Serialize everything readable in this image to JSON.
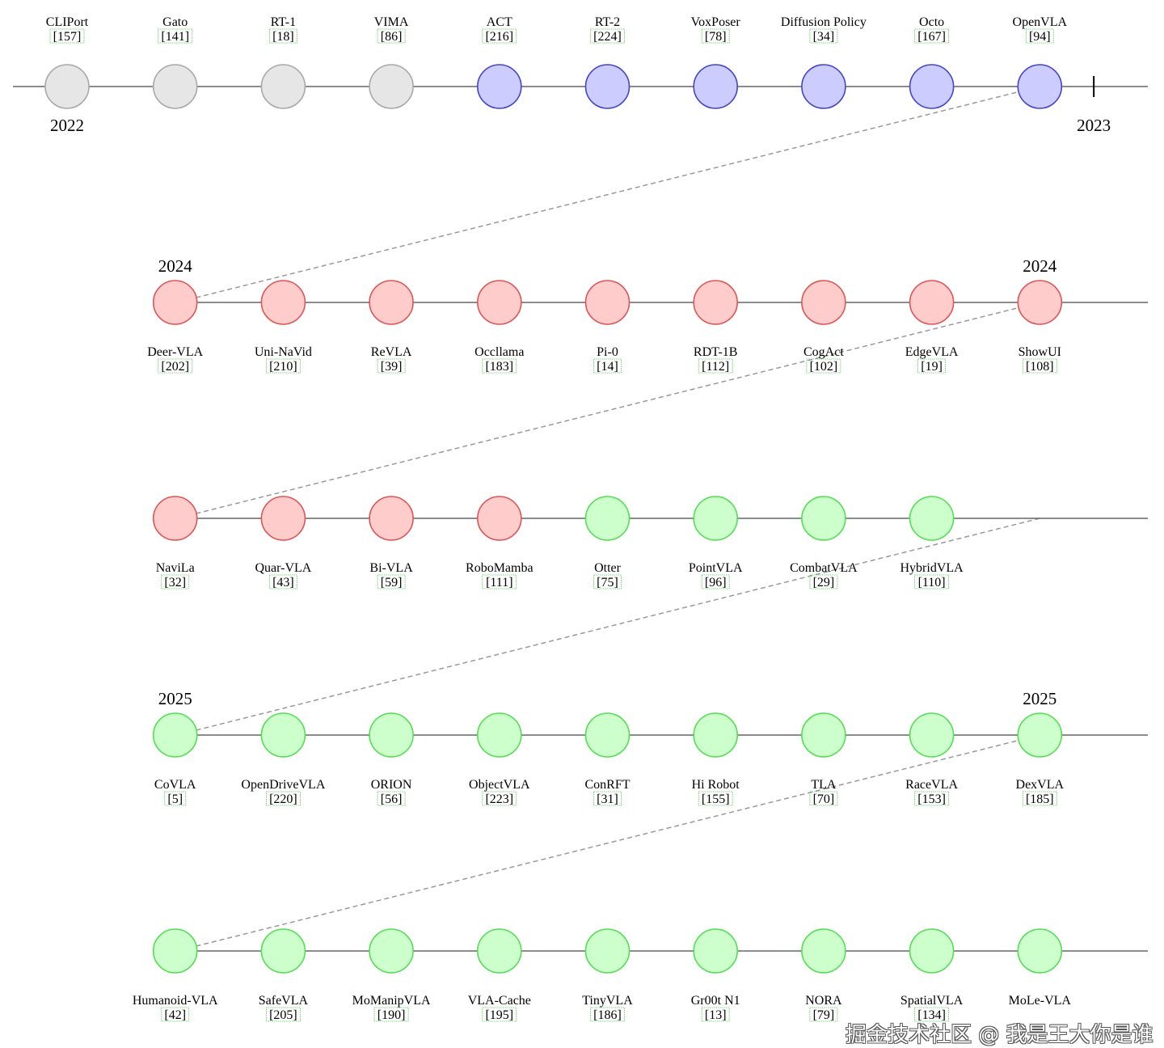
{
  "colors": {
    "gray": {
      "fill": "#e6e6e6",
      "stroke": "#a8a8a8"
    },
    "blue": {
      "fill": "#ccccff",
      "stroke": "#4444cc"
    },
    "red": {
      "fill": "#ffcccc",
      "stroke": "#dd5555"
    },
    "green": {
      "fill": "#ccffcc",
      "stroke": "#55dd55"
    },
    "cite_border": "#55cc55",
    "axis": "#666666",
    "link": "#999999"
  },
  "rows": [
    {
      "labels_above": true,
      "items": [
        {
          "name": "CLIPort",
          "cite": "[157]",
          "color": "gray"
        },
        {
          "name": "Gato",
          "cite": "[141]",
          "color": "gray"
        },
        {
          "name": "RT-1",
          "cite": "[18]",
          "color": "gray"
        },
        {
          "name": "VIMA",
          "cite": "[86]",
          "color": "gray"
        },
        {
          "name": "ACT",
          "cite": "[216]",
          "color": "blue"
        },
        {
          "name": "RT-2",
          "cite": "[224]",
          "color": "blue"
        },
        {
          "name": "VoxPoser",
          "cite": "[78]",
          "color": "blue"
        },
        {
          "name": "Diffusion Policy",
          "cite": "[34]",
          "color": "blue"
        },
        {
          "name": "Octo",
          "cite": "[167]",
          "color": "blue"
        },
        {
          "name": "OpenVLA",
          "cite": "[94]",
          "color": "blue"
        }
      ],
      "years": [
        {
          "label": "2022",
          "slot": 0
        },
        {
          "label": "2023",
          "slot": 9.5,
          "tick": true
        }
      ]
    },
    {
      "labels_above": false,
      "items": [
        {
          "name": "Deer-VLA",
          "cite": "[202]",
          "color": "red"
        },
        {
          "name": "Uni-NaVid",
          "cite": "[210]",
          "color": "red"
        },
        {
          "name": "ReVLA",
          "cite": "[39]",
          "color": "red"
        },
        {
          "name": "Occllama",
          "cite": "[183]",
          "color": "red"
        },
        {
          "name": "Pi-0",
          "cite": "[14]",
          "color": "red"
        },
        {
          "name": "RDT-1B",
          "cite": "[112]",
          "color": "red"
        },
        {
          "name": "CogAct",
          "cite": "[102]",
          "color": "red"
        },
        {
          "name": "EdgeVLA",
          "cite": "[19]",
          "color": "red"
        },
        {
          "name": "ShowUI",
          "cite": "[108]",
          "color": "red"
        }
      ],
      "years": [
        {
          "label": "2024",
          "slot": 1
        },
        {
          "label": "2024",
          "slot": 9
        }
      ]
    },
    {
      "labels_above": false,
      "items": [
        {
          "name": "NaviLa",
          "cite": "[32]",
          "color": "red"
        },
        {
          "name": "Quar-VLA",
          "cite": "[43]",
          "color": "red"
        },
        {
          "name": "Bi-VLA",
          "cite": "[59]",
          "color": "red"
        },
        {
          "name": "RoboMamba",
          "cite": "[111]",
          "color": "red"
        },
        {
          "name": "Otter",
          "cite": "[75]",
          "color": "green"
        },
        {
          "name": "PointVLA",
          "cite": "[96]",
          "color": "green"
        },
        {
          "name": "CombatVLA",
          "cite": "[29]",
          "color": "green"
        },
        {
          "name": "HybridVLA",
          "cite": "[110]",
          "color": "green"
        }
      ],
      "years": []
    },
    {
      "labels_above": false,
      "items": [
        {
          "name": "CoVLA",
          "cite": "[5]",
          "color": "green"
        },
        {
          "name": "OpenDriveVLA",
          "cite": "[220]",
          "color": "green"
        },
        {
          "name": "ORION",
          "cite": "[56]",
          "color": "green"
        },
        {
          "name": "ObjectVLA",
          "cite": "[223]",
          "color": "green"
        },
        {
          "name": "ConRFT",
          "cite": "[31]",
          "color": "green"
        },
        {
          "name": "Hi Robot",
          "cite": "[155]",
          "color": "green"
        },
        {
          "name": "TLA",
          "cite": "[70]",
          "color": "green"
        },
        {
          "name": "RaceVLA",
          "cite": "[153]",
          "color": "green"
        },
        {
          "name": "DexVLA",
          "cite": "[185]",
          "color": "green"
        }
      ],
      "years": [
        {
          "label": "2025",
          "slot": 1
        },
        {
          "label": "2025",
          "slot": 9
        }
      ]
    },
    {
      "labels_above": false,
      "items": [
        {
          "name": "Humanoid-VLA",
          "cite": "[42]",
          "color": "green"
        },
        {
          "name": "SafeVLA",
          "cite": "[205]",
          "color": "green"
        },
        {
          "name": "MoManipVLA",
          "cite": "[190]",
          "color": "green"
        },
        {
          "name": "VLA-Cache",
          "cite": "[195]",
          "color": "green"
        },
        {
          "name": "TinyVLA",
          "cite": "[186]",
          "color": "green"
        },
        {
          "name": "Gr00t N1",
          "cite": "[13]",
          "color": "green"
        },
        {
          "name": "NORA",
          "cite": "[79]",
          "color": "green"
        },
        {
          "name": "SpatialVLA",
          "cite": "[134]",
          "color": "green"
        },
        {
          "name": "MoLe-VLA",
          "cite": "",
          "color": "green"
        }
      ],
      "years": []
    }
  ],
  "watermark": "掘金技术社区 @ 我是王大你是谁"
}
